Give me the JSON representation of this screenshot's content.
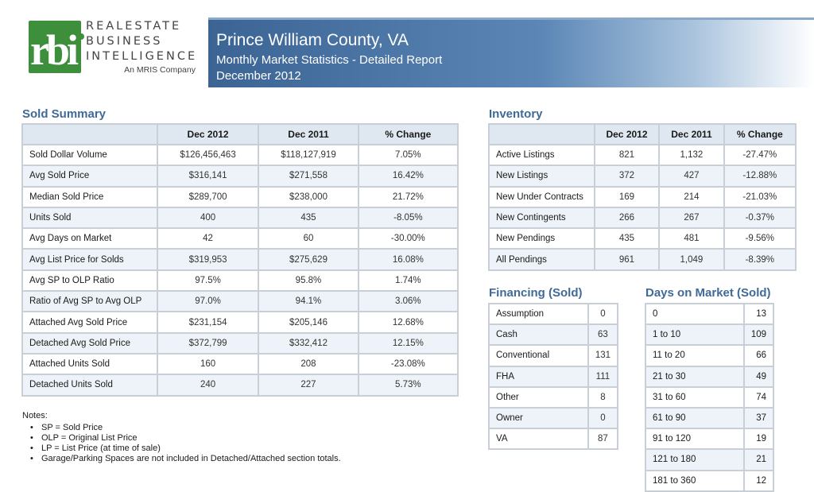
{
  "logo": {
    "mark": "rbi",
    "line1": "REALESTATE",
    "line2": "BUSINESS",
    "line3": "INTELLIGENCE",
    "tagline": "An MRIS Company",
    "brand_color": "#3d8f3c"
  },
  "header": {
    "title": "Prince William County, VA",
    "subtitle": "Monthly Market Statistics - Detailed Report",
    "period": "December 2012"
  },
  "sold_summary": {
    "title": "Sold Summary",
    "columns": [
      "",
      "Dec 2012",
      "Dec 2011",
      "% Change"
    ],
    "rows": [
      [
        "Sold Dollar Volume",
        "$126,456,463",
        "$118,127,919",
        "7.05%"
      ],
      [
        "Avg Sold Price",
        "$316,141",
        "$271,558",
        "16.42%"
      ],
      [
        "Median Sold Price",
        "$289,700",
        "$238,000",
        "21.72%"
      ],
      [
        "Units Sold",
        "400",
        "435",
        "-8.05%"
      ],
      [
        "Avg Days on Market",
        "42",
        "60",
        "-30.00%"
      ],
      [
        "Avg List Price for Solds",
        "$319,953",
        "$275,629",
        "16.08%"
      ],
      [
        "Avg SP to OLP Ratio",
        "97.5%",
        "95.8%",
        "1.74%"
      ],
      [
        "Ratio of Avg SP to Avg OLP",
        "97.0%",
        "94.1%",
        "3.06%"
      ],
      [
        "Attached Avg Sold Price",
        "$231,154",
        "$205,146",
        "12.68%"
      ],
      [
        "Detached Avg Sold Price",
        "$372,799",
        "$332,412",
        "12.15%"
      ],
      [
        "Attached Units Sold",
        "160",
        "208",
        "-23.08%"
      ],
      [
        "Detached Units Sold",
        "240",
        "227",
        "5.73%"
      ]
    ]
  },
  "inventory": {
    "title": "Inventory",
    "columns": [
      "",
      "Dec 2012",
      "Dec 2011",
      "% Change"
    ],
    "rows": [
      [
        "Active Listings",
        "821",
        "1,132",
        "-27.47%"
      ],
      [
        "New Listings",
        "372",
        "427",
        "-12.88%"
      ],
      [
        "New Under Contracts",
        "169",
        "214",
        "-21.03%"
      ],
      [
        "New Contingents",
        "266",
        "267",
        "-0.37%"
      ],
      [
        "New Pendings",
        "435",
        "481",
        "-9.56%"
      ],
      [
        "All Pendings",
        "961",
        "1,049",
        "-8.39%"
      ]
    ]
  },
  "financing": {
    "title": "Financing (Sold)",
    "rows": [
      [
        "Assumption",
        "0"
      ],
      [
        "Cash",
        "63"
      ],
      [
        "Conventional",
        "131"
      ],
      [
        "FHA",
        "111"
      ],
      [
        "Other",
        "8"
      ],
      [
        "Owner",
        "0"
      ],
      [
        "VA",
        "87"
      ]
    ]
  },
  "dom": {
    "title": "Days on Market (Sold)",
    "rows": [
      [
        "0",
        "13"
      ],
      [
        "1 to 10",
        "109"
      ],
      [
        "11 to 20",
        "66"
      ],
      [
        "21 to 30",
        "49"
      ],
      [
        "31 to 60",
        "74"
      ],
      [
        "61 to 90",
        "37"
      ],
      [
        "91 to 120",
        "19"
      ],
      [
        "121 to 180",
        "21"
      ],
      [
        "181 to 360",
        "12"
      ]
    ]
  },
  "notes": {
    "heading": "Notes:",
    "items": [
      "SP = Sold Price",
      "OLP = Original List Price",
      "LP = List Price (at time of sale)",
      "Garage/Parking Spaces are not included in Detached/Attached section totals."
    ]
  }
}
